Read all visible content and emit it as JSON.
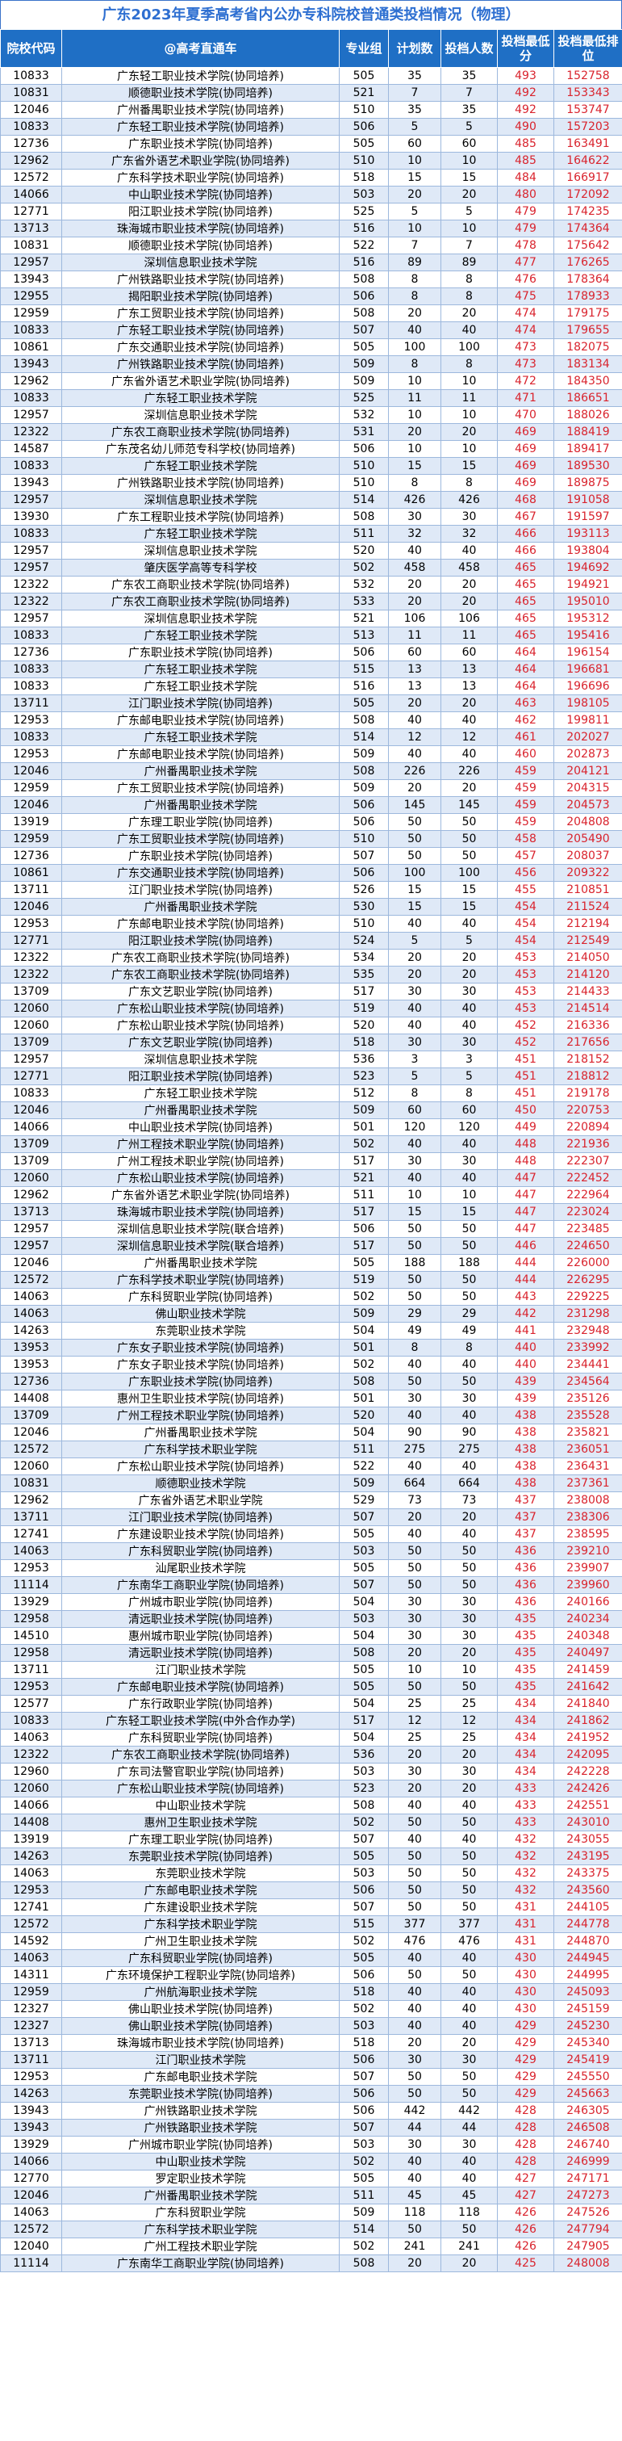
{
  "title": "广东2023年夏季高考省内公办专科院校普通类投档情况（物理）",
  "headers": [
    "院校代码",
    "@高考直通车",
    "专业组",
    "计划数",
    "投档人数",
    "投档最低分",
    "投档最低排位"
  ],
  "rows": [
    [
      "10833",
      "广东轻工职业技术学院(协同培养)",
      "505",
      "35",
      "35",
      "493",
      "152758"
    ],
    [
      "10831",
      "顺德职业技术学院(协同培养)",
      "521",
      "7",
      "7",
      "492",
      "153343"
    ],
    [
      "12046",
      "广州番禺职业技术学院(协同培养)",
      "510",
      "35",
      "35",
      "492",
      "153747"
    ],
    [
      "10833",
      "广东轻工职业技术学院(协同培养)",
      "506",
      "5",
      "5",
      "490",
      "157203"
    ],
    [
      "12736",
      "广东职业技术学院(协同培养)",
      "505",
      "60",
      "60",
      "485",
      "163491"
    ],
    [
      "12962",
      "广东省外语艺术职业学院(协同培养)",
      "510",
      "10",
      "10",
      "485",
      "164622"
    ],
    [
      "12572",
      "广东科学技术职业学院(协同培养)",
      "518",
      "15",
      "15",
      "484",
      "166917"
    ],
    [
      "14066",
      "中山职业技术学院(协同培养)",
      "503",
      "20",
      "20",
      "480",
      "172092"
    ],
    [
      "12771",
      "阳江职业技术学院(协同培养)",
      "525",
      "5",
      "5",
      "479",
      "174235"
    ],
    [
      "13713",
      "珠海城市职业技术学院(协同培养)",
      "516",
      "10",
      "10",
      "479",
      "174364"
    ],
    [
      "10831",
      "顺德职业技术学院(协同培养)",
      "522",
      "7",
      "7",
      "478",
      "175642"
    ],
    [
      "12957",
      "深圳信息职业技术学院",
      "516",
      "89",
      "89",
      "477",
      "176265"
    ],
    [
      "13943",
      "广州铁路职业技术学院(协同培养)",
      "508",
      "8",
      "8",
      "476",
      "178364"
    ],
    [
      "12955",
      "揭阳职业技术学院(协同培养)",
      "506",
      "8",
      "8",
      "475",
      "178933"
    ],
    [
      "12959",
      "广东工贸职业技术学院(协同培养)",
      "508",
      "20",
      "20",
      "474",
      "179175"
    ],
    [
      "10833",
      "广东轻工职业技术学院(协同培养)",
      "507",
      "40",
      "40",
      "474",
      "179655"
    ],
    [
      "10861",
      "广东交通职业技术学院(协同培养)",
      "505",
      "100",
      "100",
      "473",
      "182075"
    ],
    [
      "13943",
      "广州铁路职业技术学院(协同培养)",
      "509",
      "8",
      "8",
      "473",
      "183134"
    ],
    [
      "12962",
      "广东省外语艺术职业学院(协同培养)",
      "509",
      "10",
      "10",
      "472",
      "184350"
    ],
    [
      "10833",
      "广东轻工职业技术学院",
      "525",
      "11",
      "11",
      "471",
      "186651"
    ],
    [
      "12957",
      "深圳信息职业技术学院",
      "532",
      "10",
      "10",
      "470",
      "188026"
    ],
    [
      "12322",
      "广东农工商职业技术学院(协同培养)",
      "531",
      "20",
      "20",
      "469",
      "188419"
    ],
    [
      "14587",
      "广东茂名幼儿师范专科学校(协同培养)",
      "506",
      "10",
      "10",
      "469",
      "189417"
    ],
    [
      "10833",
      "广东轻工职业技术学院",
      "510",
      "15",
      "15",
      "469",
      "189530"
    ],
    [
      "13943",
      "广州铁路职业技术学院(协同培养)",
      "510",
      "8",
      "8",
      "469",
      "189875"
    ],
    [
      "12957",
      "深圳信息职业技术学院",
      "514",
      "426",
      "426",
      "468",
      "191058"
    ],
    [
      "13930",
      "广东工程职业技术学院(协同培养)",
      "508",
      "30",
      "30",
      "467",
      "191597"
    ],
    [
      "10833",
      "广东轻工职业技术学院",
      "511",
      "32",
      "32",
      "466",
      "193113"
    ],
    [
      "12957",
      "深圳信息职业技术学院",
      "520",
      "40",
      "40",
      "466",
      "193804"
    ],
    [
      "12957",
      "肇庆医学高等专科学校",
      "502",
      "458",
      "458",
      "465",
      "194692"
    ],
    [
      "12322",
      "广东农工商职业技术学院(协同培养)",
      "532",
      "20",
      "20",
      "465",
      "194921"
    ],
    [
      "12322",
      "广东农工商职业技术学院(协同培养)",
      "533",
      "20",
      "20",
      "465",
      "195010"
    ],
    [
      "12957",
      "深圳信息职业技术学院",
      "521",
      "106",
      "106",
      "465",
      "195312"
    ],
    [
      "10833",
      "广东轻工职业技术学院",
      "513",
      "11",
      "11",
      "465",
      "195416"
    ],
    [
      "12736",
      "广东职业技术学院(协同培养)",
      "506",
      "60",
      "60",
      "464",
      "196154"
    ],
    [
      "10833",
      "广东轻工职业技术学院",
      "515",
      "13",
      "13",
      "464",
      "196681"
    ],
    [
      "10833",
      "广东轻工职业技术学院",
      "516",
      "13",
      "13",
      "464",
      "196696"
    ],
    [
      "13711",
      "江门职业技术学院(协同培养)",
      "505",
      "20",
      "20",
      "463",
      "198105"
    ],
    [
      "12953",
      "广东邮电职业技术学院(协同培养)",
      "508",
      "40",
      "40",
      "462",
      "199811"
    ],
    [
      "10833",
      "广东轻工职业技术学院",
      "514",
      "12",
      "12",
      "461",
      "202027"
    ],
    [
      "12953",
      "广东邮电职业技术学院(协同培养)",
      "509",
      "40",
      "40",
      "460",
      "202873"
    ],
    [
      "12046",
      "广州番禺职业技术学院",
      "508",
      "226",
      "226",
      "459",
      "204121"
    ],
    [
      "12959",
      "广东工贸职业技术学院(协同培养)",
      "509",
      "20",
      "20",
      "459",
      "204315"
    ],
    [
      "12046",
      "广州番禺职业技术学院",
      "506",
      "145",
      "145",
      "459",
      "204573"
    ],
    [
      "13919",
      "广东理工职业学院(协同培养)",
      "506",
      "50",
      "50",
      "459",
      "204808"
    ],
    [
      "12959",
      "广东工贸职业技术学院(协同培养)",
      "510",
      "50",
      "50",
      "458",
      "205490"
    ],
    [
      "12736",
      "广东职业技术学院(协同培养)",
      "507",
      "50",
      "50",
      "457",
      "208037"
    ],
    [
      "10861",
      "广东交通职业技术学院(协同培养)",
      "506",
      "100",
      "100",
      "456",
      "209322"
    ],
    [
      "13711",
      "江门职业技术学院(协同培养)",
      "526",
      "15",
      "15",
      "455",
      "210851"
    ],
    [
      "12046",
      "广州番禺职业技术学院",
      "530",
      "15",
      "15",
      "454",
      "211524"
    ],
    [
      "12953",
      "广东邮电职业技术学院(协同培养)",
      "510",
      "40",
      "40",
      "454",
      "212194"
    ],
    [
      "12771",
      "阳江职业技术学院(协同培养)",
      "524",
      "5",
      "5",
      "454",
      "212549"
    ],
    [
      "12322",
      "广东农工商职业技术学院(协同培养)",
      "534",
      "20",
      "20",
      "453",
      "214050"
    ],
    [
      "12322",
      "广东农工商职业技术学院(协同培养)",
      "535",
      "20",
      "20",
      "453",
      "214120"
    ],
    [
      "13709",
      "广东文艺职业学院(协同培养)",
      "517",
      "30",
      "30",
      "453",
      "214433"
    ],
    [
      "12060",
      "广东松山职业技术学院(协同培养)",
      "519",
      "40",
      "40",
      "453",
      "214514"
    ],
    [
      "12060",
      "广东松山职业技术学院(协同培养)",
      "520",
      "40",
      "40",
      "452",
      "216336"
    ],
    [
      "13709",
      "广东文艺职业学院(协同培养)",
      "518",
      "30",
      "30",
      "452",
      "217656"
    ],
    [
      "12957",
      "深圳信息职业技术学院",
      "536",
      "3",
      "3",
      "451",
      "218152"
    ],
    [
      "12771",
      "阳江职业技术学院(协同培养)",
      "523",
      "5",
      "5",
      "451",
      "218812"
    ],
    [
      "10833",
      "广东轻工职业技术学院",
      "512",
      "8",
      "8",
      "451",
      "219178"
    ],
    [
      "12046",
      "广州番禺职业技术学院",
      "509",
      "60",
      "60",
      "450",
      "220753"
    ],
    [
      "14066",
      "中山职业技术学院(协同培养)",
      "501",
      "120",
      "120",
      "449",
      "220894"
    ],
    [
      "13709",
      "广州工程技术职业学院(协同培养)",
      "502",
      "40",
      "40",
      "448",
      "221936"
    ],
    [
      "13709",
      "广州工程技术职业学院(协同培养)",
      "517",
      "30",
      "30",
      "448",
      "222307"
    ],
    [
      "12060",
      "广东松山职业技术学院(协同培养)",
      "521",
      "40",
      "40",
      "447",
      "222452"
    ],
    [
      "12962",
      "广东省外语艺术职业学院(协同培养)",
      "511",
      "10",
      "10",
      "447",
      "222964"
    ],
    [
      "13713",
      "珠海城市职业技术学院(协同培养)",
      "517",
      "15",
      "15",
      "447",
      "223024"
    ],
    [
      "12957",
      "深圳信息职业技术学院(联合培养)",
      "506",
      "50",
      "50",
      "447",
      "223485"
    ],
    [
      "12957",
      "深圳信息职业技术学院(联合培养)",
      "517",
      "50",
      "50",
      "446",
      "224650"
    ],
    [
      "12046",
      "广州番禺职业技术学院",
      "505",
      "188",
      "188",
      "444",
      "226000"
    ],
    [
      "12572",
      "广东科学技术职业学院(协同培养)",
      "519",
      "50",
      "50",
      "444",
      "226295"
    ],
    [
      "14063",
      "广东科贸职业学院(协同培养)",
      "502",
      "50",
      "50",
      "443",
      "229225"
    ],
    [
      "14063",
      "佛山职业技术学院",
      "509",
      "29",
      "29",
      "442",
      "231298"
    ],
    [
      "14263",
      "东莞职业技术学院",
      "504",
      "49",
      "49",
      "441",
      "232948"
    ],
    [
      "13953",
      "广东女子职业技术学院(协同培养)",
      "501",
      "8",
      "8",
      "440",
      "233992"
    ],
    [
      "13953",
      "广东女子职业技术学院(协同培养)",
      "502",
      "40",
      "40",
      "440",
      "234441"
    ],
    [
      "12736",
      "广东职业技术学院(协同培养)",
      "508",
      "50",
      "50",
      "439",
      "234564"
    ],
    [
      "14408",
      "惠州卫生职业技术学院(协同培养)",
      "501",
      "30",
      "30",
      "439",
      "235126"
    ],
    [
      "13709",
      "广州工程技术职业学院(协同培养)",
      "520",
      "40",
      "40",
      "438",
      "235528"
    ],
    [
      "12046",
      "广州番禺职业技术学院",
      "504",
      "90",
      "90",
      "438",
      "235821"
    ],
    [
      "12572",
      "广东科学技术职业学院",
      "511",
      "275",
      "275",
      "438",
      "236051"
    ],
    [
      "12060",
      "广东松山职业技术学院(协同培养)",
      "522",
      "40",
      "40",
      "438",
      "236431"
    ],
    [
      "10831",
      "顺德职业技术学院",
      "509",
      "664",
      "664",
      "438",
      "237361"
    ],
    [
      "12962",
      "广东省外语艺术职业学院",
      "529",
      "73",
      "73",
      "437",
      "238008"
    ],
    [
      "13711",
      "江门职业技术学院(协同培养)",
      "507",
      "20",
      "20",
      "437",
      "238306"
    ],
    [
      "12741",
      "广东建设职业技术学院(协同培养)",
      "505",
      "40",
      "40",
      "437",
      "238595"
    ],
    [
      "14063",
      "广东科贸职业学院(协同培养)",
      "503",
      "50",
      "50",
      "436",
      "239210"
    ],
    [
      "12953",
      "汕尾职业技术学院",
      "505",
      "50",
      "50",
      "436",
      "239907"
    ],
    [
      "11114",
      "广东南华工商职业学院(协同培养)",
      "507",
      "50",
      "50",
      "436",
      "239960"
    ],
    [
      "13929",
      "广州城市职业学院(协同培养)",
      "504",
      "30",
      "30",
      "436",
      "240166"
    ],
    [
      "12958",
      "清远职业技术学院(协同培养)",
      "503",
      "30",
      "30",
      "435",
      "240234"
    ],
    [
      "14510",
      "惠州城市职业学院(协同培养)",
      "504",
      "30",
      "30",
      "435",
      "240348"
    ],
    [
      "12958",
      "清远职业技术学院(协同培养)",
      "508",
      "20",
      "20",
      "435",
      "240497"
    ],
    [
      "13711",
      "江门职业技术学院",
      "505",
      "10",
      "10",
      "435",
      "241459"
    ],
    [
      "12953",
      "广东邮电职业技术学院(协同培养)",
      "505",
      "50",
      "50",
      "435",
      "241642"
    ],
    [
      "12577",
      "广东行政职业学院(协同培养)",
      "504",
      "25",
      "25",
      "434",
      "241840"
    ],
    [
      "10833",
      "广东轻工职业技术学院(中外合作办学)",
      "517",
      "12",
      "12",
      "434",
      "241862"
    ],
    [
      "14063",
      "广东科贸职业学院(协同培养)",
      "504",
      "25",
      "25",
      "434",
      "241952"
    ],
    [
      "12322",
      "广东农工商职业技术学院(协同培养)",
      "536",
      "20",
      "20",
      "434",
      "242095"
    ],
    [
      "12960",
      "广东司法警官职业学院(协同培养)",
      "503",
      "30",
      "30",
      "434",
      "242228"
    ],
    [
      "12060",
      "广东松山职业技术学院(协同培养)",
      "523",
      "20",
      "20",
      "433",
      "242426"
    ],
    [
      "14066",
      "中山职业技术学院",
      "508",
      "40",
      "40",
      "433",
      "242551"
    ],
    [
      "14408",
      "惠州卫生职业技术学院",
      "502",
      "50",
      "50",
      "433",
      "243010"
    ],
    [
      "13919",
      "广东理工职业学院(协同培养)",
      "507",
      "40",
      "40",
      "432",
      "243055"
    ],
    [
      "14263",
      "东莞职业技术学院(协同培养)",
      "505",
      "50",
      "50",
      "432",
      "243195"
    ],
    [
      "14063",
      "东莞职业技术学院",
      "503",
      "50",
      "50",
      "432",
      "243375"
    ],
    [
      "12953",
      "广东邮电职业技术学院",
      "506",
      "50",
      "50",
      "432",
      "243560"
    ],
    [
      "12741",
      "广东建设职业技术学院",
      "507",
      "50",
      "50",
      "431",
      "244105"
    ],
    [
      "12572",
      "广东科学技术职业学院",
      "515",
      "377",
      "377",
      "431",
      "244778"
    ],
    [
      "14592",
      "广州卫生职业技术学院",
      "502",
      "476",
      "476",
      "431",
      "244870"
    ],
    [
      "14063",
      "广东科贸职业学院(协同培养)",
      "505",
      "40",
      "40",
      "430",
      "244945"
    ],
    [
      "14311",
      "广东环境保护工程职业学院(协同培养)",
      "506",
      "50",
      "50",
      "430",
      "244995"
    ],
    [
      "12959",
      "广州航海职业技术学院",
      "518",
      "40",
      "40",
      "430",
      "245093"
    ],
    [
      "12327",
      "佛山职业技术学院(协同培养)",
      "502",
      "40",
      "40",
      "430",
      "245159"
    ],
    [
      "12327",
      "佛山职业技术学院(协同培养)",
      "503",
      "40",
      "40",
      "429",
      "245230"
    ],
    [
      "13713",
      "珠海城市职业技术学院(协同培养)",
      "518",
      "20",
      "20",
      "429",
      "245340"
    ],
    [
      "13711",
      "江门职业技术学院",
      "506",
      "30",
      "30",
      "429",
      "245419"
    ],
    [
      "12953",
      "广东邮电职业技术学院",
      "507",
      "50",
      "50",
      "429",
      "245550"
    ],
    [
      "14263",
      "东莞职业技术学院(协同培养)",
      "506",
      "50",
      "50",
      "429",
      "245663"
    ],
    [
      "13943",
      "广州铁路职业技术学院",
      "506",
      "442",
      "442",
      "428",
      "246305"
    ],
    [
      "13943",
      "广州铁路职业技术学院",
      "507",
      "44",
      "44",
      "428",
      "246508"
    ],
    [
      "13929",
      "广州城市职业学院(协同培养)",
      "503",
      "30",
      "30",
      "428",
      "246740"
    ],
    [
      "14066",
      "中山职业技术学院",
      "502",
      "40",
      "40",
      "428",
      "246999"
    ],
    [
      "12770",
      "罗定职业技术学院",
      "505",
      "40",
      "40",
      "427",
      "247171"
    ],
    [
      "12046",
      "广州番禺职业技术学院",
      "511",
      "45",
      "45",
      "427",
      "247273"
    ],
    [
      "14063",
      "广东科贸职业学院",
      "509",
      "118",
      "118",
      "426",
      "247526"
    ],
    [
      "12572",
      "广东科学技术职业学院",
      "514",
      "50",
      "50",
      "426",
      "247794"
    ],
    [
      "12040",
      "广州工程技术职业学院",
      "502",
      "241",
      "241",
      "426",
      "247905"
    ],
    [
      "11114",
      "广东南华工商职业学院(协同培养)",
      "508",
      "20",
      "20",
      "425",
      "248008"
    ]
  ]
}
